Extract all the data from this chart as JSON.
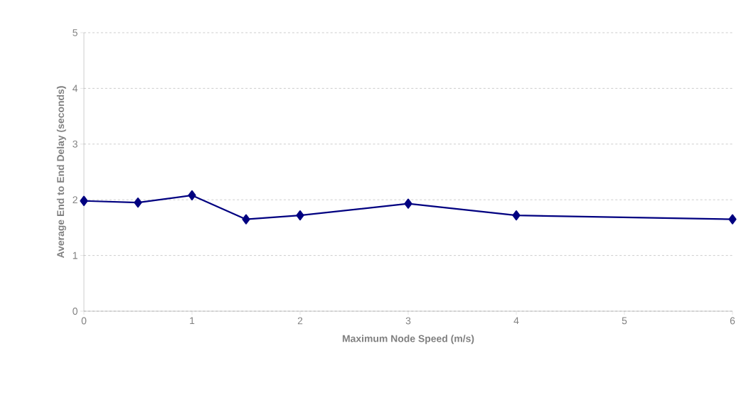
{
  "chart_data": {
    "type": "line",
    "xlabel": "Maximum Node Speed (m/s)",
    "ylabel": "Average End to End Delay (seconds)",
    "x": [
      0,
      0.5,
      1,
      1.5,
      2,
      3,
      4,
      6
    ],
    "series": [
      {
        "color": "#000080",
        "values": [
          1.98,
          1.95,
          2.08,
          1.65,
          1.72,
          1.93,
          1.72,
          1.65
        ]
      }
    ],
    "xlim": [
      0,
      6
    ],
    "xticks": [
      0,
      1,
      2,
      3,
      4,
      5,
      6
    ],
    "ylim": [
      0,
      5
    ],
    "yticks": [
      0,
      1,
      2,
      3,
      4,
      5
    ],
    "grid": "y",
    "marker": "diamond",
    "line_style": "solid"
  }
}
